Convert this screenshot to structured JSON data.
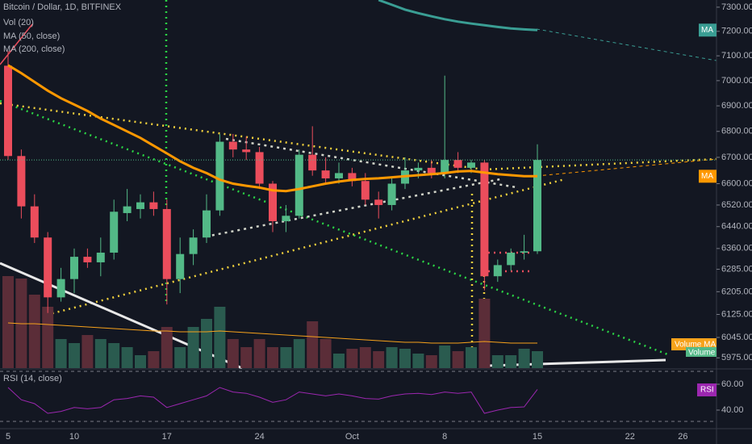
{
  "chart_data": {
    "type": "candlestick",
    "title": "Bitcoin / Dollar, 1D, BITFINEX",
    "categories": [
      "5",
      null,
      null,
      null,
      null,
      "10",
      null,
      null,
      null,
      null,
      null,
      null,
      "17",
      null,
      null,
      null,
      null,
      null,
      null,
      "24",
      null,
      null,
      null,
      null,
      null,
      null,
      "Oct",
      null,
      null,
      null,
      null,
      null,
      null,
      "8",
      null,
      null,
      null,
      null,
      null,
      null,
      "15",
      null,
      null,
      null,
      null,
      null,
      null,
      "22",
      null,
      null,
      null,
      "26",
      null,
      null
    ],
    "open": [
      7060,
      6705,
      6515,
      6400,
      6185,
      6250,
      6330,
      6310,
      6345,
      6490,
      6505,
      6530,
      6505,
      6250,
      6340,
      6400,
      6500,
      6760,
      6730,
      6720,
      6600,
      6460,
      6480,
      6710,
      6650,
      6620,
      6640,
      6610,
      6540,
      6520,
      6600,
      6650,
      6660,
      6640,
      6690,
      6660,
      6680,
      6260,
      6300,
      6345,
      6350,
      null,
      null,
      null,
      null,
      null,
      null,
      null,
      null,
      null,
      null,
      null,
      null,
      null
    ],
    "high": [
      7120,
      6730,
      6560,
      6420,
      6290,
      6360,
      6360,
      6400,
      6540,
      6580,
      6560,
      6570,
      6540,
      6400,
      6430,
      6560,
      6790,
      6790,
      6780,
      6740,
      6610,
      6520,
      6730,
      6820,
      6700,
      6680,
      6660,
      6640,
      6570,
      6620,
      6700,
      6680,
      6690,
      7020,
      6720,
      6690,
      6690,
      6320,
      6360,
      6410,
      6750,
      null,
      null,
      null,
      null,
      null,
      null,
      null,
      null,
      null,
      null,
      null,
      null,
      null
    ],
    "low": [
      6690,
      6470,
      6380,
      6130,
      6170,
      6200,
      6290,
      6260,
      6320,
      6460,
      6470,
      6480,
      6160,
      6200,
      6300,
      6380,
      6480,
      6700,
      6690,
      6580,
      6420,
      6420,
      6470,
      6630,
      6600,
      6600,
      6590,
      6520,
      6470,
      6500,
      6580,
      6620,
      6620,
      6620,
      6640,
      6640,
      6210,
      6240,
      6280,
      6320,
      6340,
      null,
      null,
      null,
      null,
      null,
      null,
      null,
      null,
      null,
      null,
      null,
      null,
      null
    ],
    "close": [
      6705,
      6515,
      6400,
      6185,
      6250,
      6330,
      6310,
      6345,
      6495,
      6515,
      6530,
      6505,
      6250,
      6340,
      6400,
      6500,
      6760,
      6730,
      6720,
      6600,
      6460,
      6480,
      6710,
      6650,
      6620,
      6640,
      6610,
      6540,
      6520,
      6600,
      6650,
      6660,
      6640,
      6690,
      6660,
      6680,
      6260,
      6300,
      6345,
      6350,
      6690,
      null,
      null,
      null,
      null,
      null,
      null,
      null,
      null,
      null,
      null,
      null,
      null,
      null
    ],
    "up_color": "#53b987",
    "down_color": "#eb4d5c",
    "ylim": [
      5940,
      7330
    ],
    "log_scale": true,
    "yticks": [
      {
        "value": 7300,
        "label": "7300.00"
      },
      {
        "value": 7200,
        "label": "7200.00"
      },
      {
        "value": 7100,
        "label": "7100.00"
      },
      {
        "value": 7000,
        "label": "7000.00"
      },
      {
        "value": 6900,
        "label": "6900.00"
      },
      {
        "value": 6800,
        "label": "6800.00"
      },
      {
        "value": 6700,
        "label": "6700.00"
      },
      {
        "value": 6600,
        "label": "6600.00"
      },
      {
        "value": 6520,
        "label": "6520.00"
      },
      {
        "value": 6440,
        "label": "6440.00"
      },
      {
        "value": 6360,
        "label": "6360.00"
      },
      {
        "value": 6285,
        "label": "6285.00"
      },
      {
        "value": 6205,
        "label": "6205.00"
      },
      {
        "value": 6125,
        "label": "6125.00"
      },
      {
        "value": 6045,
        "label": "6045.00"
      },
      {
        "value": 5975,
        "label": "5975.00"
      }
    ],
    "series": [
      {
        "name": "MA (50, close)",
        "label": "MA",
        "color": "#ff9800",
        "values": [
          7062,
          7030,
          6995,
          6960,
          6930,
          6905,
          6880,
          6850,
          6825,
          6800,
          6775,
          6745,
          6715,
          6685,
          6660,
          6640,
          6615,
          6600,
          6592,
          6585,
          6575,
          6572,
          6580,
          6590,
          6600,
          6608,
          6614,
          6618,
          6620,
          6624,
          6628,
          6632,
          6636,
          6640,
          6646,
          6648,
          6642,
          6636,
          6632,
          6628,
          6628,
          null,
          null,
          null,
          null,
          null,
          null,
          null,
          null,
          null,
          null,
          null,
          null,
          null
        ]
      },
      {
        "name": "MA (200, close)",
        "label": "MA",
        "color": "#3a9e94",
        "values": [
          null,
          null,
          null,
          null,
          null,
          null,
          null,
          null,
          null,
          null,
          null,
          null,
          null,
          null,
          null,
          null,
          null,
          null,
          null,
          null,
          null,
          null,
          null,
          null,
          null,
          null,
          null,
          null,
          7330,
          7310,
          7290,
          7275,
          7262,
          7250,
          7240,
          7232,
          7225,
          7218,
          7212,
          7208,
          7205,
          null,
          null,
          null,
          null,
          null,
          null,
          null,
          null,
          null,
          null,
          null,
          null,
          null
        ]
      }
    ],
    "volume": {
      "name": "Vol (20)",
      "label": "Volume",
      "ylim": [
        0,
        456
      ],
      "values": [
        114,
        111,
        91,
        76,
        36,
        31,
        41,
        36,
        31,
        26,
        16,
        21,
        51,
        26,
        51,
        61,
        76,
        36,
        26,
        36,
        26,
        26,
        36,
        58,
        36,
        18,
        24,
        26,
        21,
        26,
        24,
        18,
        16,
        28,
        21,
        26,
        86,
        16,
        16,
        24,
        21,
        null,
        null,
        null,
        null,
        null,
        null,
        null,
        null,
        null,
        null,
        null,
        null,
        null
      ],
      "ma": {
        "label": "Volume MA",
        "color": "#f7a21b",
        "values": [
          56,
          55,
          55,
          54,
          53,
          52,
          51,
          50,
          49,
          48,
          47,
          46,
          46,
          45,
          45,
          45,
          46,
          45,
          44,
          43,
          42,
          41,
          40,
          39,
          38,
          37,
          36,
          35,
          34,
          33,
          32,
          32,
          31,
          31,
          31,
          32,
          33,
          32,
          31,
          31,
          31,
          null,
          null,
          null,
          null,
          null,
          null,
          null,
          null,
          null,
          null,
          null,
          null,
          null
        ]
      }
    },
    "rsi": {
      "name": "RSI (14, close)",
      "label": "RSI",
      "color": "#9c27b0",
      "ylim": [
        26.25,
        71.25
      ],
      "yticks": [
        {
          "value": 60,
          "label": "60.00"
        },
        {
          "value": 40,
          "label": "40.00"
        }
      ],
      "values": [
        57.5,
        48,
        45,
        37.5,
        39,
        42,
        41,
        42,
        48,
        49,
        51,
        50,
        42,
        45,
        48,
        51,
        57.5,
        54,
        53,
        50,
        46,
        48,
        54,
        52.5,
        51,
        52.5,
        51,
        49,
        48.5,
        51,
        52.5,
        53,
        52,
        54,
        53,
        54,
        37.5,
        40,
        42,
        42.5,
        56,
        null,
        null,
        null,
        null,
        null,
        null,
        null,
        null,
        null,
        null,
        null,
        null,
        null
      ]
    }
  }
}
